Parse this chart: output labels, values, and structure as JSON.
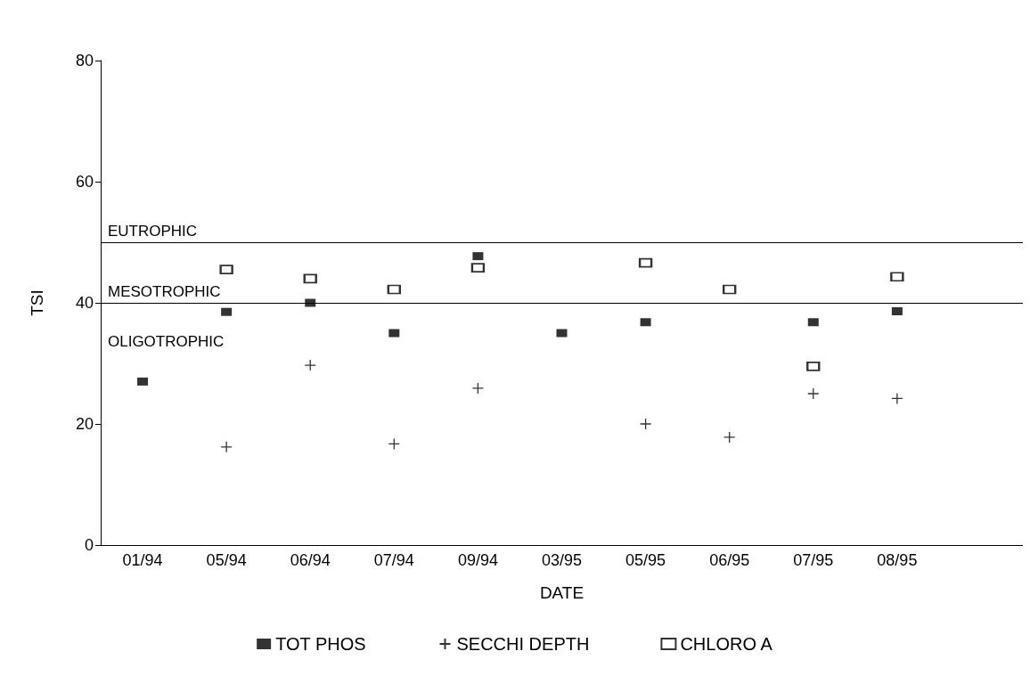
{
  "chart_data": {
    "type": "scatter",
    "xlabel": "DATE",
    "ylabel": "TSI",
    "categories": [
      "01/94",
      "05/94",
      "06/94",
      "07/94",
      "09/94",
      "03/95",
      "05/95",
      "06/95",
      "07/95",
      "08/95",
      null
    ],
    "series": [
      {
        "name": "TOT PHOS",
        "color": "#000000",
        "marker": "square",
        "values": [
          27,
          38.5,
          40,
          35,
          47.7,
          35,
          36.8,
          null,
          36.8,
          38.6,
          null
        ]
      },
      {
        "name": "SECCHI DEPTH",
        "color": "#000000",
        "marker": "cross",
        "values": [
          null,
          16.2,
          29.7,
          16.7,
          25.9,
          null,
          20,
          17.8,
          25,
          24.2,
          null
        ]
      },
      {
        "name": "CHLORO A",
        "color": "#000000",
        "values": [
          null,
          45.5,
          44,
          42.2,
          45.8,
          null,
          46.6,
          42.2,
          29.5,
          44.3,
          null
        ]
      }
    ],
    "ylim": [
      0,
      80
    ],
    "yticks": [
      0,
      20,
      40,
      60,
      80
    ],
    "grid": false,
    "legend": "bottom",
    "ref_lines": [
      {
        "axis": "y",
        "value": 50,
        "label": "EUTROPHIC",
        "color": "#000000"
      },
      {
        "axis": "y",
        "value": 40,
        "label": "MESOTROPHIC",
        "color": "#000000"
      }
    ],
    "annotations": [
      "OLIGOTROPHIC"
    ]
  }
}
